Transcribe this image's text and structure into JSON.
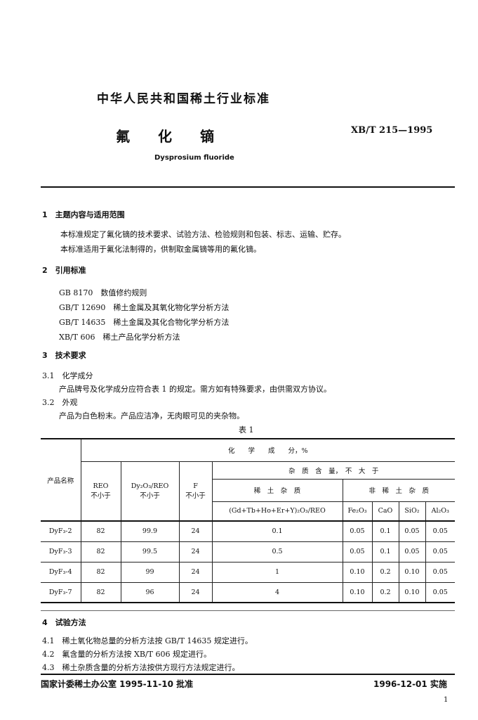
{
  "header": {
    "org": "中华人民共和国稀土行业标准",
    "title": "氟　　化　　镝",
    "code": "XB/T 215—1995",
    "subtitle": "Dysprosium fluoride"
  },
  "s1": {
    "num": "1",
    "title": "主题内容与适用范围",
    "p1": "本标准规定了氟化镝的技术要求、试验方法、检验规则和包装、标志、运输、贮存。",
    "p2": "本标准适用于氟化法制得的，供制取金属镝等用的氟化镝。"
  },
  "s2": {
    "num": "2",
    "title": "引用标准",
    "refs": [
      {
        "code": "GB 8170",
        "name": "数值修约规则"
      },
      {
        "code": "GB/T 12690",
        "name": "稀土金属及其氧化物化学分析方法"
      },
      {
        "code": "GB/T 14635",
        "name": "稀土金属及其化合物化学分析方法"
      },
      {
        "code": "XB/T 606",
        "name": "稀土产品化学分析方法"
      }
    ]
  },
  "s3": {
    "num": "3",
    "title": "技术要求",
    "s31": {
      "num": "3.1",
      "title": "化学成分",
      "text": "产品牌号及化学成分应符合表 1 的规定。需方如有特殊要求，由供需双方协议。"
    },
    "s32": {
      "num": "3.2",
      "title": "外观",
      "text": "产品为白色粉末。产品应洁净，无肉眼可见的夹杂物。"
    },
    "table_caption": "表 1"
  },
  "table": {
    "product": "产品名称",
    "chem": "化　　学　　成　　分，%",
    "reo": "REO",
    "dy": "Dy₂O₃/REO",
    "f": "F",
    "nlt": "不小于",
    "imp": "杂　质　含　量，　不　大　于",
    "re_imp": "稀　土　杂　质",
    "nre_imp": "非　稀　土　杂　质",
    "re_col": "(Gd+Tb+Ho+Er+Y)₂O₃/REO",
    "fe": "Fe₂O₃",
    "cao": "CaO",
    "sio": "SiO₂",
    "al": "Al₂O₃",
    "rows": [
      [
        "DyF₃-2",
        "82",
        "99.9",
        "24",
        "0.1",
        "0.05",
        "0.1",
        "0.05",
        "0.05"
      ],
      [
        "DyF₃-3",
        "82",
        "99.5",
        "24",
        "0.5",
        "0.05",
        "0.1",
        "0.05",
        "0.05"
      ],
      [
        "DyF₃-4",
        "82",
        "99",
        "24",
        "1",
        "0.10",
        "0.2",
        "0.10",
        "0.05"
      ],
      [
        "DyF₃-7",
        "82",
        "96",
        "24",
        "4",
        "0.10",
        "0.2",
        "0.10",
        "0.05"
      ]
    ]
  },
  "s4": {
    "num": "4",
    "title": "试验方法",
    "items": [
      {
        "num": "4.1",
        "text": "稀土氧化物总量的分析方法按 GB/T 14635 规定进行。"
      },
      {
        "num": "4.2",
        "text": "氟含量的分析方法按 XB/T 606 规定进行。"
      },
      {
        "num": "4.3",
        "text": "稀土杂质含量的分析方法按供方现行方法规定进行。"
      }
    ]
  },
  "footer": {
    "approved": "国家计委稀土办公室 1995-11-10 批准",
    "effective": "1996-12-01 实施",
    "page": "1"
  }
}
